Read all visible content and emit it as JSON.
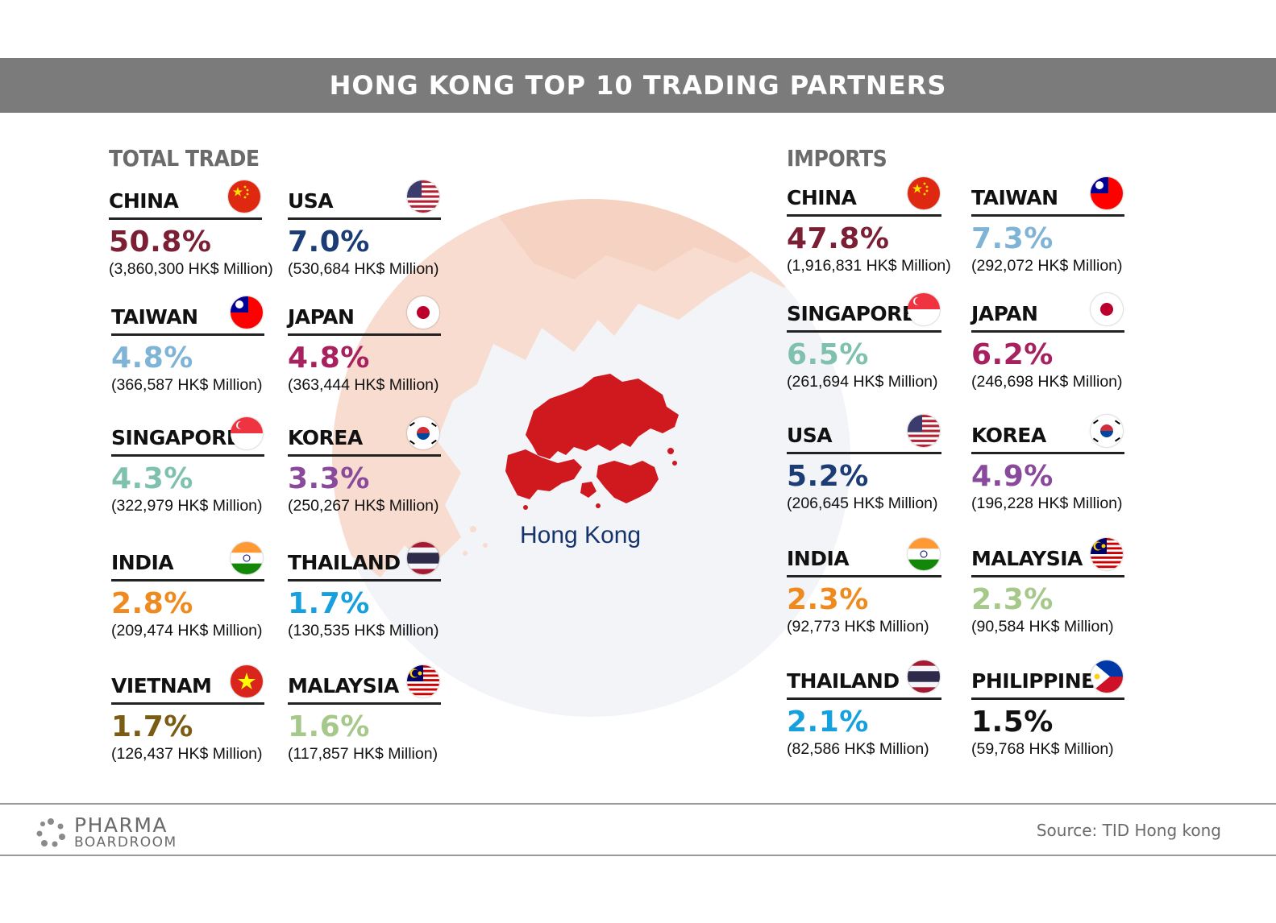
{
  "title": "HONG KONG TOP 10 TRADING PARTNERS",
  "map_label": "Hong Kong",
  "colors": {
    "title_bar": "#7b7b7b",
    "hk_map": "#d0191f",
    "map_text": "#17336b"
  },
  "total_trade": {
    "label": "TOTAL TRADE",
    "entries": [
      {
        "name": "CHINA",
        "flag": "china-flag-icon",
        "pct": "50.8%",
        "amount": "(3,860,300 HK$ Million)",
        "color": "#7a1f34"
      },
      {
        "name": "USA",
        "flag": "usa-flag-icon",
        "pct": "7.0%",
        "amount": "(530,684 HK$ Million)",
        "color": "#1b3c74"
      },
      {
        "name": "TAIWAN",
        "flag": "taiwan-flag-icon",
        "pct": "4.8%",
        "amount": "(366,587 HK$ Million)",
        "color": "#7fb4d6"
      },
      {
        "name": "JAPAN",
        "flag": "japan-flag-icon",
        "pct": "4.8%",
        "amount": "(363,444 HK$ Million)",
        "color": "#a8215f"
      },
      {
        "name": "SINGAPORE",
        "flag": "singapore-flag-icon",
        "pct": "4.3%",
        "amount": "(322,979 HK$ Million)",
        "color": "#7fc1ae"
      },
      {
        "name": "KOREA",
        "flag": "korea-flag-icon",
        "pct": "3.3%",
        "amount": "(250,267 HK$ Million)",
        "color": "#8a4a9c"
      },
      {
        "name": "INDIA",
        "flag": "india-flag-icon",
        "pct": "2.8%",
        "amount": "(209,474 HK$ Million)",
        "color": "#ee8a1e"
      },
      {
        "name": "THAILAND",
        "flag": "thailand-flag-icon",
        "pct": "1.7%",
        "amount": "(130,535 HK$ Million)",
        "color": "#16a0de"
      },
      {
        "name": "VIETNAM",
        "flag": "vietnam-flag-icon",
        "pct": "1.7%",
        "amount": "(126,437 HK$ Million)",
        "color": "#7a5c12"
      },
      {
        "name": "MALAYSIA",
        "flag": "malaysia-flag-icon",
        "pct": "1.6%",
        "amount": "(117,857 HK$ Million)",
        "color": "#a6c88a"
      }
    ]
  },
  "imports": {
    "label": "IMPORTS",
    "entries": [
      {
        "name": "CHINA",
        "flag": "china-flag-icon",
        "pct": "47.8%",
        "amount": "(1,916,831 HK$ Million)",
        "color": "#7a1f34"
      },
      {
        "name": "TAIWAN",
        "flag": "taiwan-flag-icon",
        "pct": "7.3%",
        "amount": "(292,072 HK$ Million)",
        "color": "#7fb4d6"
      },
      {
        "name": "SINGAPORE",
        "flag": "singapore-flag-icon",
        "pct": "6.5%",
        "amount": "(261,694 HK$ Million)",
        "color": "#7fc1ae"
      },
      {
        "name": "JAPAN",
        "flag": "japan-flag-icon",
        "pct": "6.2%",
        "amount": "(246,698 HK$ Million)",
        "color": "#a8215f"
      },
      {
        "name": "USA",
        "flag": "usa-flag-icon",
        "pct": "5.2%",
        "amount": "(206,645 HK$ Million)",
        "color": "#1b3c74"
      },
      {
        "name": "KOREA",
        "flag": "korea-flag-icon",
        "pct": "4.9%",
        "amount": "(196,228 HK$ Million)",
        "color": "#8a4a9c"
      },
      {
        "name": "INDIA",
        "flag": "india-flag-icon",
        "pct": "2.3%",
        "amount": "(92,773 HK$ Million)",
        "color": "#ee8a1e"
      },
      {
        "name": "MALAYSIA",
        "flag": "malaysia-flag-icon",
        "pct": "2.3%",
        "amount": "(90,584 HK$ Million)",
        "color": "#a6c88a"
      },
      {
        "name": "THAILAND",
        "flag": "thailand-flag-icon",
        "pct": "2.1%",
        "amount": "(82,586 HK$ Million)",
        "color": "#16a0de"
      },
      {
        "name": "PHILIPPINES",
        "flag": "philippines-flag-icon",
        "pct": "1.5%",
        "amount": "(59,768 HK$ Million)",
        "color": "#111111"
      }
    ]
  },
  "footer": {
    "logo_line1": "PHARMA",
    "logo_line2": "BOARDROOM",
    "source": "Source: TID Hong kong"
  }
}
